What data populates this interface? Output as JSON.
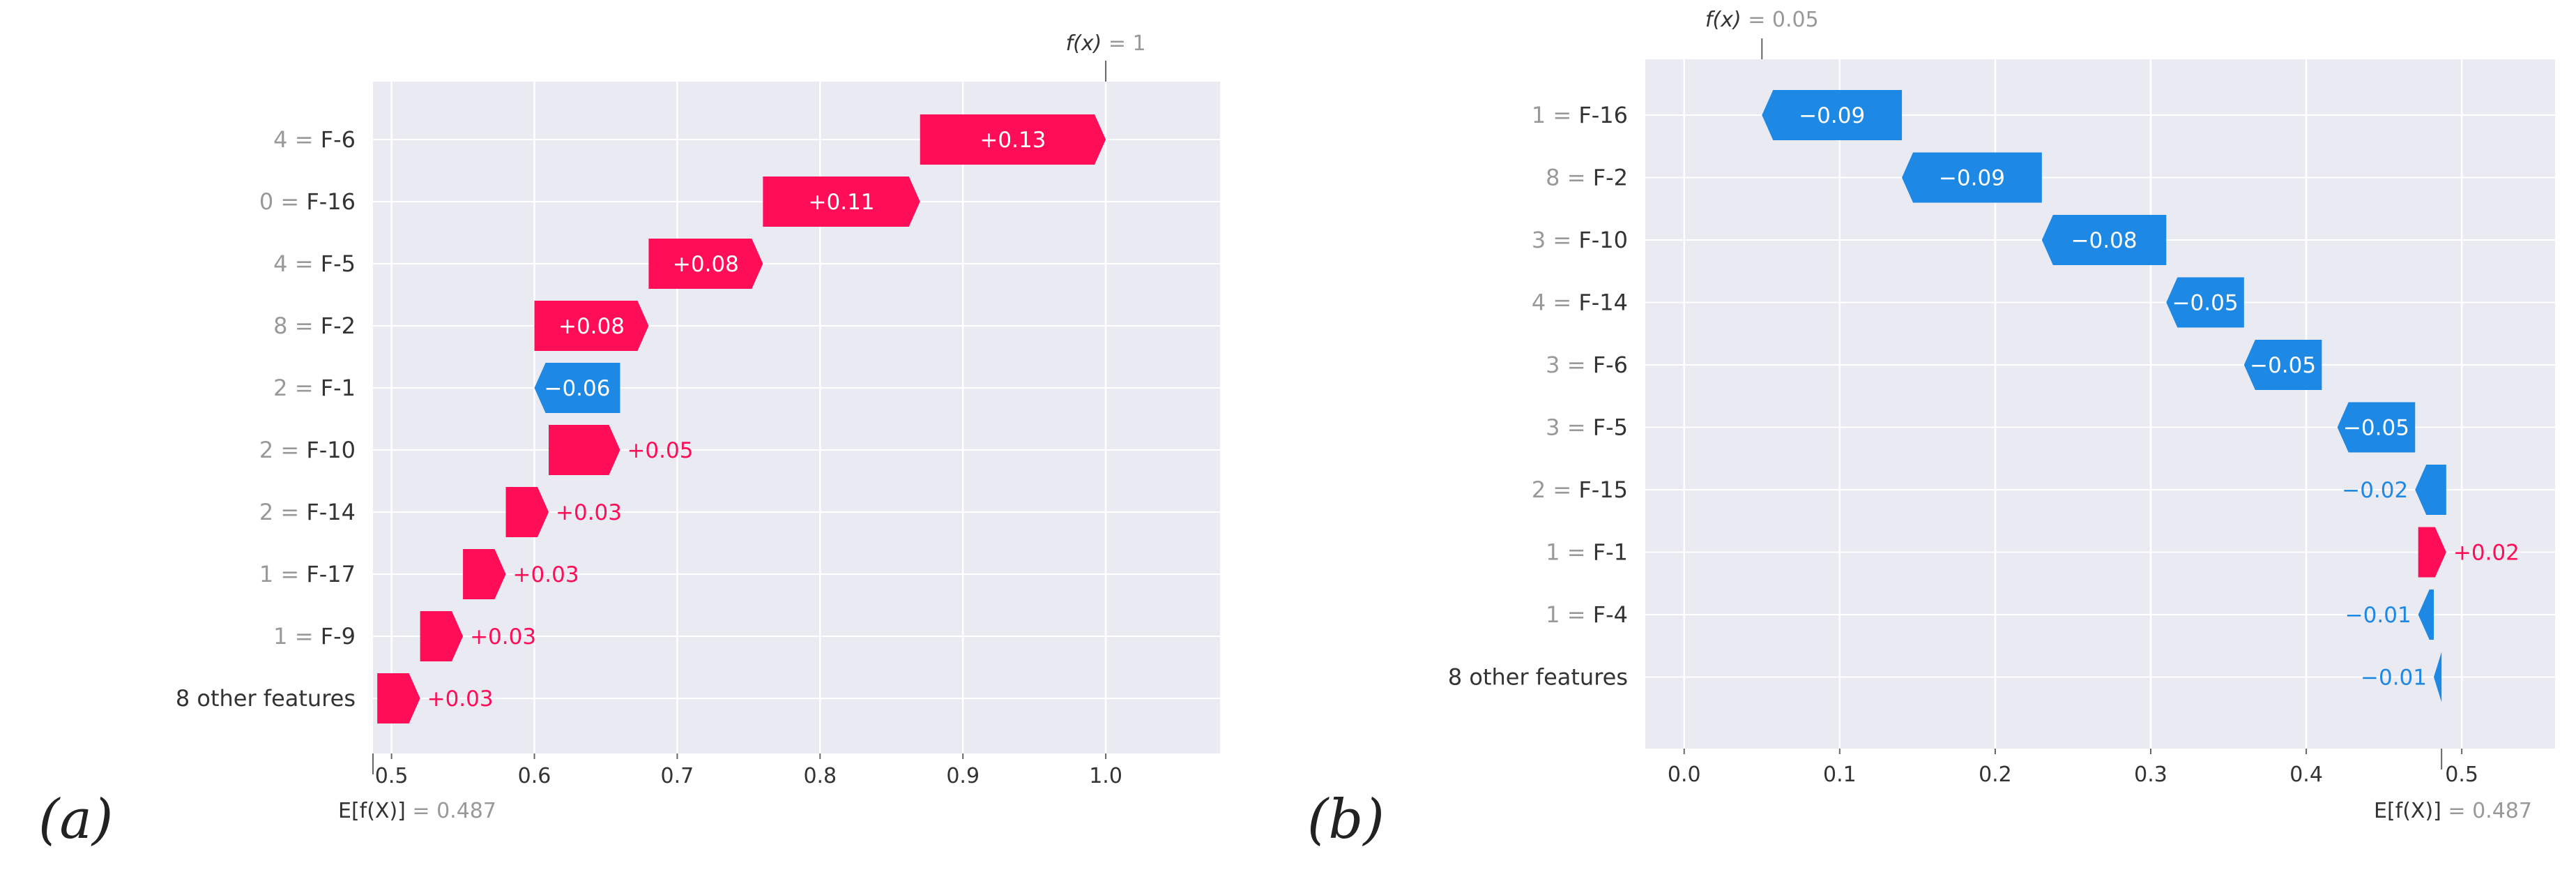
{
  "colors": {
    "positive": "#ff0d57",
    "negative": "#1e88e5",
    "panel": "#eaeaf2",
    "grid": "#ffffff",
    "text": "#333333",
    "muted": "#999999"
  },
  "chart_data": [
    {
      "type": "bar",
      "subtype": "waterfall",
      "panel_label": "(a)",
      "fx_label": "f(x)",
      "fx_value": "= 1",
      "ex_label": "E[f(X)]",
      "ex_value": "= 0.487",
      "base_value": 0.487,
      "final_value": 1,
      "xlim": [
        0.487,
        1.08
      ],
      "xticks": [
        "0.5",
        "0.6",
        "0.7",
        "0.8",
        "0.9",
        "1.0"
      ],
      "grid": true,
      "rows": [
        {
          "feature_value": "4",
          "feature": "F-6",
          "start": 0.87,
          "end": 1.0,
          "label": "+0.13"
        },
        {
          "feature_value": "0",
          "feature": "F-16",
          "start": 0.76,
          "end": 0.87,
          "label": "+0.11"
        },
        {
          "feature_value": "4",
          "feature": "F-5",
          "start": 0.68,
          "end": 0.76,
          "label": "+0.08"
        },
        {
          "feature_value": "8",
          "feature": "F-2",
          "start": 0.6,
          "end": 0.68,
          "label": "+0.08"
        },
        {
          "feature_value": "2",
          "feature": "F-1",
          "start": 0.66,
          "end": 0.6,
          "label": "−0.06"
        },
        {
          "feature_value": "2",
          "feature": "F-10",
          "start": 0.61,
          "end": 0.66,
          "label": "+0.05"
        },
        {
          "feature_value": "2",
          "feature": "F-14",
          "start": 0.58,
          "end": 0.61,
          "label": "+0.03"
        },
        {
          "feature_value": "1",
          "feature": "F-17",
          "start": 0.55,
          "end": 0.58,
          "label": "+0.03"
        },
        {
          "feature_value": "1",
          "feature": "F-9",
          "start": 0.52,
          "end": 0.55,
          "label": "+0.03"
        },
        {
          "feature_value": "",
          "feature": "8 other features",
          "start": 0.49,
          "end": 0.52,
          "label": "+0.03"
        }
      ]
    },
    {
      "type": "bar",
      "subtype": "waterfall",
      "panel_label": "(b)",
      "fx_label": "f(x)",
      "fx_value": "= 0.05",
      "ex_label": "E[f(X)]",
      "ex_value": "= 0.487",
      "base_value": 0.487,
      "final_value": 0.05,
      "xlim": [
        -0.025,
        0.56
      ],
      "xticks": [
        "0.0",
        "0.1",
        "0.2",
        "0.3",
        "0.4",
        "0.5"
      ],
      "grid": true,
      "rows": [
        {
          "feature_value": "1",
          "feature": "F-16",
          "start": 0.14,
          "end": 0.05,
          "label": "−0.09"
        },
        {
          "feature_value": "8",
          "feature": "F-2",
          "start": 0.23,
          "end": 0.14,
          "label": "−0.09"
        },
        {
          "feature_value": "3",
          "feature": "F-10",
          "start": 0.31,
          "end": 0.23,
          "label": "−0.08"
        },
        {
          "feature_value": "4",
          "feature": "F-14",
          "start": 0.36,
          "end": 0.31,
          "label": "−0.05"
        },
        {
          "feature_value": "3",
          "feature": "F-6",
          "start": 0.41,
          "end": 0.36,
          "label": "−0.05"
        },
        {
          "feature_value": "3",
          "feature": "F-5",
          "start": 0.47,
          "end": 0.42,
          "label": "−0.05"
        },
        {
          "feature_value": "2",
          "feature": "F-15",
          "start": 0.49,
          "end": 0.47,
          "label": "−0.02"
        },
        {
          "feature_value": "1",
          "feature": "F-1",
          "start": 0.472,
          "end": 0.49,
          "label": "+0.02"
        },
        {
          "feature_value": "1",
          "feature": "F-4",
          "start": 0.482,
          "end": 0.472,
          "label": "−0.01"
        },
        {
          "feature_value": "",
          "feature": "8 other features",
          "start": 0.487,
          "end": 0.482,
          "label": "−0.01"
        }
      ]
    }
  ]
}
